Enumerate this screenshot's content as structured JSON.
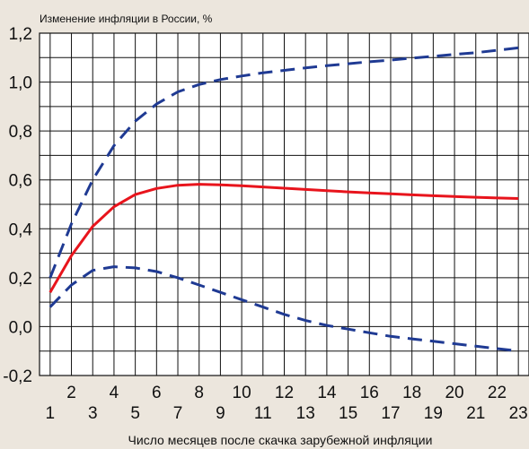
{
  "chart_data": {
    "type": "line",
    "title": "",
    "ylabel": "Изменение инфляции в России, %",
    "xlabel": "Число месяцев после скачка зарубежной инфляции",
    "xlim": [
      0.5,
      23.5
    ],
    "ylim": [
      -0.2,
      1.2
    ],
    "x_ticks_top_row": [
      "2",
      "4",
      "6",
      "8",
      "10",
      "12",
      "14",
      "16",
      "18",
      "20",
      "22"
    ],
    "x_ticks_bottom_row": [
      "1",
      "3",
      "5",
      "7",
      "9",
      "11",
      "13",
      "15",
      "17",
      "19",
      "21",
      "23"
    ],
    "y_ticks": [
      "1,2",
      "1,0",
      "0,8",
      "0,6",
      "0,4",
      "0,2",
      "0,0",
      "-0,2"
    ],
    "grid": true,
    "series": [
      {
        "color": "#e8141c",
        "style": "solid",
        "x": [
          1,
          2,
          3,
          4,
          5,
          6,
          7,
          8,
          9,
          10,
          11,
          12,
          13,
          14,
          15,
          16,
          17,
          18,
          19,
          20,
          21,
          22,
          23
        ],
        "values": [
          0.14,
          0.29,
          0.41,
          0.49,
          0.54,
          0.565,
          0.578,
          0.582,
          0.58,
          0.576,
          0.571,
          0.566,
          0.561,
          0.556,
          0.551,
          0.547,
          0.543,
          0.539,
          0.535,
          0.532,
          0.529,
          0.526,
          0.524
        ]
      },
      {
        "color": "#1f3a93",
        "style": "dashed",
        "x": [
          1,
          2,
          3,
          4,
          5,
          6,
          7,
          8,
          9,
          10,
          11,
          12,
          13,
          14,
          15,
          16,
          17,
          18,
          19,
          20,
          21,
          22,
          23
        ],
        "values": [
          0.2,
          0.42,
          0.6,
          0.74,
          0.84,
          0.91,
          0.96,
          0.99,
          1.01,
          1.025,
          1.038,
          1.048,
          1.058,
          1.067,
          1.075,
          1.083,
          1.09,
          1.098,
          1.105,
          1.113,
          1.12,
          1.13,
          1.14
        ]
      },
      {
        "color": "#1f3a93",
        "style": "dashed",
        "x": [
          1,
          2,
          3,
          4,
          5,
          6,
          7,
          8,
          9,
          10,
          11,
          12,
          13,
          14,
          15,
          16,
          17,
          18,
          19,
          20,
          21,
          22,
          23
        ],
        "values": [
          0.08,
          0.17,
          0.23,
          0.245,
          0.24,
          0.225,
          0.2,
          0.17,
          0.14,
          0.11,
          0.08,
          0.05,
          0.025,
          0.005,
          -0.01,
          -0.025,
          -0.04,
          -0.05,
          -0.06,
          -0.07,
          -0.08,
          -0.09,
          -0.1
        ]
      }
    ]
  }
}
